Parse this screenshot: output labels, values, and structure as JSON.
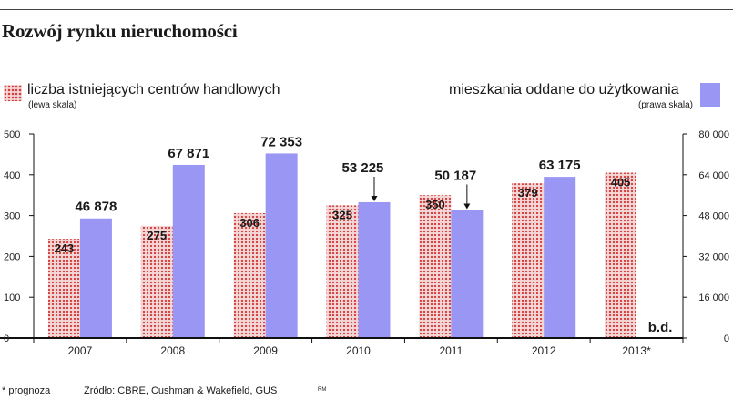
{
  "title": "Rozwój rynku nieruchomości",
  "legend": {
    "left_label": "liczba istniejących centrów handlowych",
    "left_sub": "(lewa skala)",
    "right_label": "mieszkania oddane do użytkowania",
    "right_sub": "(prawa skala)"
  },
  "footer": {
    "note": "* prognoza",
    "source": "Źródło: CBRE, Cushman & Wakefield, GUS",
    "credit": "RM"
  },
  "colors": {
    "dots": "#d43a3a",
    "dots_bg": "#f4d6d6",
    "bar": "#9a97f4",
    "axis": "#111111"
  },
  "chart_data": {
    "type": "bar",
    "categories": [
      "2007",
      "2008",
      "2009",
      "2010",
      "2011",
      "2012",
      "2013*"
    ],
    "series": [
      {
        "name": "liczba istniejących centrów handlowych",
        "axis": "left",
        "values": [
          243,
          275,
          306,
          325,
          350,
          379,
          405
        ],
        "labels": [
          "243",
          "275",
          "306",
          "325",
          "350",
          "379",
          "405"
        ]
      },
      {
        "name": "mieszkania oddane do użytkowania",
        "axis": "right",
        "values": [
          46878,
          67871,
          72353,
          53225,
          50187,
          63175,
          null
        ],
        "labels": [
          "46 878",
          "67 871",
          "72 353",
          "53 225",
          "50 187",
          "63 175",
          "b.d."
        ]
      }
    ],
    "left_axis": {
      "ylim": [
        0,
        500
      ],
      "ticks": [
        "0",
        "100",
        "200",
        "300",
        "400",
        "500"
      ]
    },
    "right_axis": {
      "ylim": [
        0,
        80000
      ],
      "ticks": [
        "0",
        "16 000",
        "32 000",
        "48 000",
        "64 000",
        "80 000"
      ]
    },
    "grid": false
  }
}
